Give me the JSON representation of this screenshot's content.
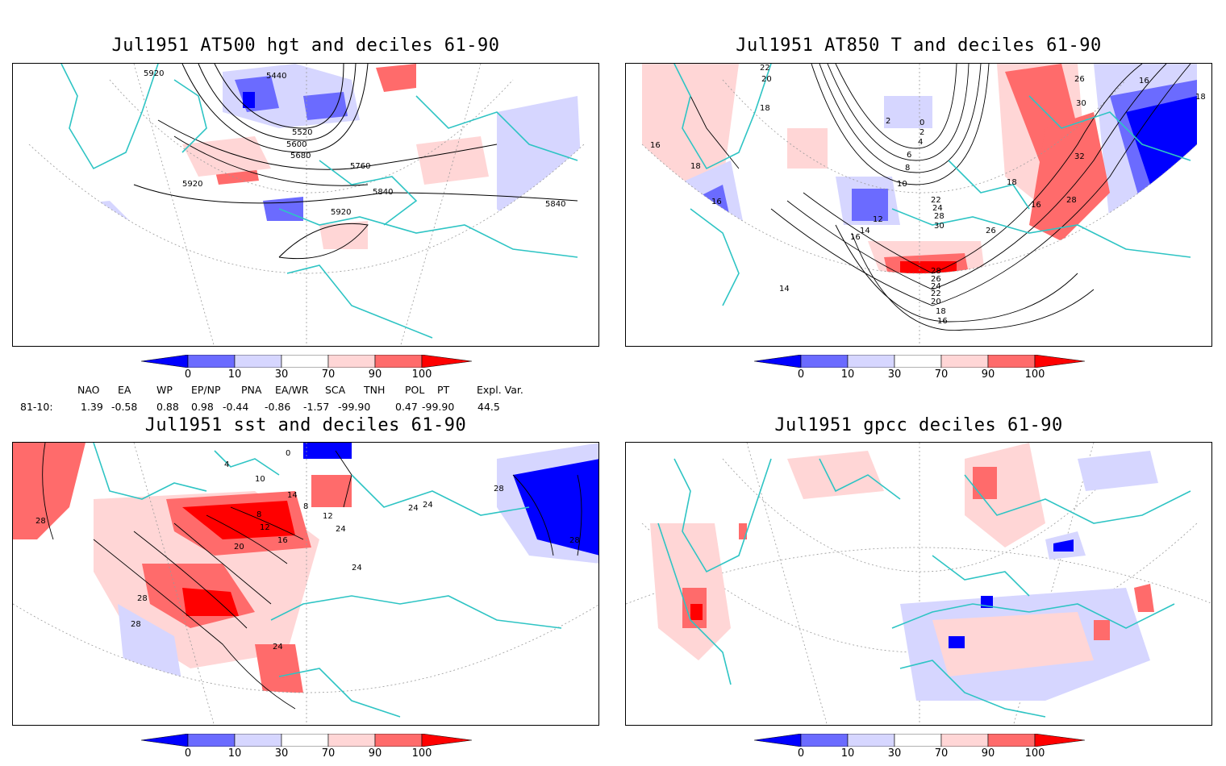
{
  "panels": [
    {
      "title": "Jul1951 AT500 hgt and deciles 61-90",
      "contour_labels": [
        "5920",
        "5440",
        "5520",
        "5600",
        "5680",
        "5760",
        "5840",
        "5840",
        "5920",
        "5920"
      ]
    },
    {
      "title": "Jul1951 AT850 T and deciles 61-90",
      "contour_labels": [
        "22",
        "20",
        "18",
        "16",
        "18",
        "16",
        "14",
        "12",
        "14",
        "16",
        "10",
        "8",
        "6",
        "4",
        "2",
        "0",
        "2",
        "22",
        "24",
        "28",
        "30",
        "26",
        "28",
        "26",
        "24",
        "22",
        "20",
        "18",
        "16",
        "18",
        "16",
        "28",
        "32",
        "30",
        "26",
        "16",
        "18"
      ]
    },
    {
      "title": "Jul1951 sst and deciles 61-90",
      "contour_labels": [
        "28",
        "28",
        "28",
        "24",
        "20",
        "16",
        "12",
        "8",
        "4",
        "0",
        "10",
        "14",
        "8",
        "12",
        "24",
        "24",
        "24",
        "28",
        "28",
        "24"
      ]
    },
    {
      "title": "Jul1951 gpcc deciles 61-90",
      "contour_labels": []
    }
  ],
  "legend": {
    "labels": [
      "0",
      "10",
      "30",
      "70",
      "90",
      "100"
    ],
    "colors": [
      "#0000ff",
      "#6b6bff",
      "#d6d6ff",
      "#ffffff",
      "#ffd6d6",
      "#ff6b6b",
      "#ff0000"
    ]
  },
  "indices": {
    "header": [
      "NAO",
      "EA",
      "WP",
      "EP/NP",
      "PNA",
      "EA/WR",
      "SCA",
      "TNH",
      "POL",
      "PT",
      "Expl. Var."
    ],
    "row_label": "81-10:",
    "values": [
      "1.39",
      "-0.58",
      "0.88",
      "0.98",
      "-0.44",
      "-0.86",
      "-1.57",
      "-99.90",
      "0.47",
      "-99.90",
      "44.5"
    ]
  },
  "colors": {
    "coast": "#2ec4c4",
    "grid": "#999999",
    "contour": "#000000"
  }
}
